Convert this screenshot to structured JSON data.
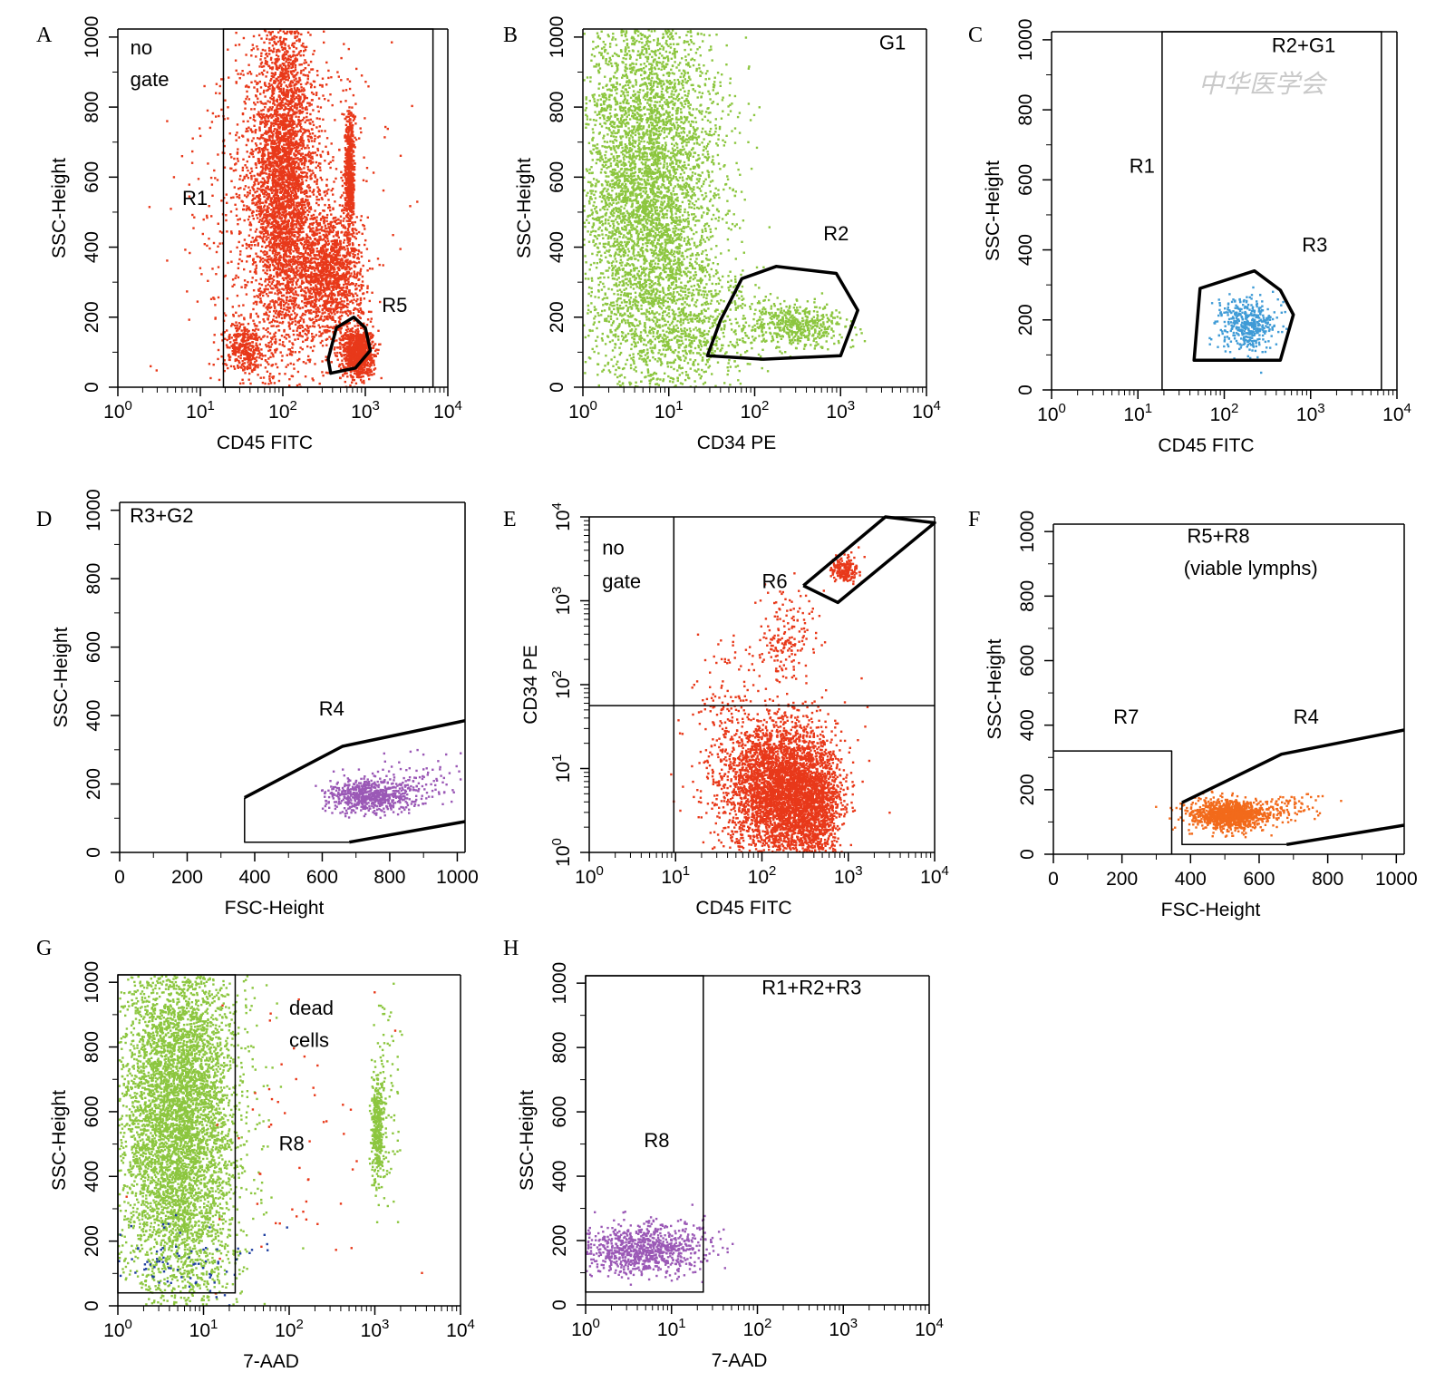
{
  "colors": {
    "red": "#e8391a",
    "green": "#8cc63f",
    "blue": "#3f9bd6",
    "purple": "#9b59b6",
    "orange": "#f26a1b",
    "navy": "#1f3fa0",
    "gate": "#000000"
  },
  "watermark": "中华医学会",
  "chart_data": [
    {
      "id": "A",
      "type": "scatter",
      "panel_letter": "A",
      "xlabel": "CD45 FITC",
      "ylabel": "SSC-Height",
      "x_scale": "log",
      "xlim": [
        0,
        4
      ],
      "ylim": [
        0,
        1023
      ],
      "x_ticks": [
        {
          "pre": "10",
          "exp": "0"
        },
        {
          "pre": "10",
          "exp": "1"
        },
        {
          "pre": "10",
          "exp": "2"
        },
        {
          "pre": "10",
          "exp": "3"
        },
        {
          "pre": "10",
          "exp": "4"
        }
      ],
      "y_ticks": [
        "0",
        "200",
        "400",
        "600",
        "800",
        "1000"
      ],
      "annotations": [
        {
          "text": "no",
          "x": 0.15,
          "y": 950
        },
        {
          "text": "gate",
          "x": 0.15,
          "y": 860
        },
        {
          "text": "R1",
          "x": 0.78,
          "y": 520
        },
        {
          "text": "R5",
          "x": 3.2,
          "y": 215
        }
      ],
      "gates": [
        {
          "name": "R1",
          "kind": "rect",
          "stroke": 1.5,
          "points": [
            [
              1.28,
              0
            ],
            [
              3.82,
              1023
            ]
          ]
        },
        {
          "name": "R5",
          "kind": "poly",
          "stroke": 3.5,
          "points": [
            [
              2.58,
              40
            ],
            [
              2.88,
              55
            ],
            [
              3.06,
              105
            ],
            [
              3.0,
              170
            ],
            [
              2.86,
              200
            ],
            [
              2.65,
              170
            ],
            [
              2.55,
              80
            ]
          ]
        }
      ],
      "clusters": [
        {
          "color": "red",
          "n": 3200,
          "cx": 2.0,
          "cy": 600,
          "sx": 0.18,
          "sy": 230
        },
        {
          "color": "red",
          "n": 1400,
          "cx": 2.55,
          "cy": 320,
          "sx": 0.2,
          "sy": 90
        },
        {
          "color": "red",
          "n": 1000,
          "cx": 2.9,
          "cy": 100,
          "sx": 0.09,
          "sy": 35
        },
        {
          "color": "red",
          "n": 600,
          "cx": 2.8,
          "cy": 610,
          "sx": 0.03,
          "sy": 95
        },
        {
          "color": "red",
          "n": 350,
          "cx": 1.52,
          "cy": 115,
          "sx": 0.12,
          "sy": 35
        },
        {
          "color": "red",
          "n": 1200,
          "cx": 2.0,
          "cy": 500,
          "sx": 0.5,
          "sy": 280
        }
      ]
    },
    {
      "id": "B",
      "type": "scatter",
      "panel_letter": "B",
      "xlabel": "CD34 PE",
      "ylabel": "SSC-Height",
      "x_scale": "log",
      "xlim": [
        0,
        4
      ],
      "ylim": [
        0,
        1023
      ],
      "x_ticks": [
        {
          "pre": "10",
          "exp": "0"
        },
        {
          "pre": "10",
          "exp": "1"
        },
        {
          "pre": "10",
          "exp": "2"
        },
        {
          "pre": "10",
          "exp": "3"
        },
        {
          "pre": "10",
          "exp": "4"
        }
      ],
      "y_ticks": [
        "0",
        "200",
        "400",
        "600",
        "800",
        "1000"
      ],
      "annotations": [
        {
          "text": "G1",
          "x": 3.45,
          "y": 965
        },
        {
          "text": "R2",
          "x": 2.8,
          "y": 420
        }
      ],
      "gates": [
        {
          "name": "R2",
          "kind": "poly",
          "stroke": 3.5,
          "points": [
            [
              1.45,
              90
            ],
            [
              1.6,
              190
            ],
            [
              1.85,
              310
            ],
            [
              2.25,
              345
            ],
            [
              2.95,
              325
            ],
            [
              3.2,
              220
            ],
            [
              3.0,
              90
            ],
            [
              2.1,
              80
            ]
          ]
        }
      ],
      "clusters": [
        {
          "color": "green",
          "n": 5500,
          "cx": 0.75,
          "cy": 560,
          "sx": 0.42,
          "sy": 320
        },
        {
          "color": "green",
          "n": 500,
          "cx": 2.5,
          "cy": 180,
          "sx": 0.28,
          "sy": 32
        },
        {
          "color": "green",
          "n": 500,
          "cx": 1.35,
          "cy": 170,
          "sx": 0.4,
          "sy": 80
        }
      ]
    },
    {
      "id": "C",
      "type": "scatter",
      "panel_letter": "C",
      "xlabel": "CD45 FITC",
      "ylabel": "SSC-Height",
      "x_scale": "log",
      "xlim": [
        0,
        4
      ],
      "ylim": [
        0,
        1023
      ],
      "x_ticks": [
        {
          "pre": "10",
          "exp": "0"
        },
        {
          "pre": "10",
          "exp": "1"
        },
        {
          "pre": "10",
          "exp": "2"
        },
        {
          "pre": "10",
          "exp": "3"
        },
        {
          "pre": "10",
          "exp": "4"
        }
      ],
      "y_ticks": [
        "0",
        "200",
        "400",
        "600",
        "800",
        "1000"
      ],
      "annotations": [
        {
          "text": "R2+G1",
          "x": 2.55,
          "y": 965
        },
        {
          "text": "R1",
          "x": 0.9,
          "y": 620
        },
        {
          "text": "R3",
          "x": 2.9,
          "y": 395
        }
      ],
      "gates": [
        {
          "name": "R1",
          "kind": "rect",
          "stroke": 1.5,
          "points": [
            [
              1.28,
              0
            ],
            [
              3.82,
              1023
            ]
          ]
        },
        {
          "name": "R3",
          "kind": "poly",
          "stroke": 3.5,
          "points": [
            [
              1.65,
              85
            ],
            [
              1.72,
              290
            ],
            [
              2.35,
              340
            ],
            [
              2.65,
              285
            ],
            [
              2.8,
              215
            ],
            [
              2.65,
              85
            ]
          ]
        }
      ],
      "clusters": [
        {
          "color": "blue",
          "n": 420,
          "cx": 2.25,
          "cy": 190,
          "sx": 0.16,
          "sy": 38
        }
      ]
    },
    {
      "id": "D",
      "type": "scatter",
      "panel_letter": "D",
      "xlabel": "FSC-Height",
      "ylabel": "SSC-Height",
      "x_scale": "linear",
      "xlim": [
        0,
        1023
      ],
      "ylim": [
        0,
        1023
      ],
      "x_ticks": [
        "0",
        "200",
        "400",
        "600",
        "800",
        "1000"
      ],
      "y_ticks": [
        "0",
        "200",
        "400",
        "600",
        "800",
        "1000"
      ],
      "annotations": [
        {
          "text": "R3+G2",
          "x": 30,
          "y": 965
        },
        {
          "text": "R4",
          "x": 590,
          "y": 400
        }
      ],
      "gates": [
        {
          "name": "R4-left",
          "kind": "line",
          "stroke": 1.5,
          "points": [
            [
              370,
              160
            ],
            [
              370,
              30
            ],
            [
              680,
              30
            ]
          ]
        },
        {
          "name": "R4-upper",
          "kind": "line",
          "stroke": 3.5,
          "points": [
            [
              370,
              160
            ],
            [
              660,
              310
            ],
            [
              1023,
              385
            ]
          ]
        },
        {
          "name": "R4-lower",
          "kind": "line",
          "stroke": 3.5,
          "points": [
            [
              680,
              30
            ],
            [
              1023,
              90
            ]
          ]
        }
      ],
      "clusters": [
        {
          "color": "purple",
          "n": 650,
          "cx": 740,
          "cy": 170,
          "sx": 65,
          "sy": 25
        },
        {
          "color": "purple",
          "n": 90,
          "cx": 900,
          "cy": 210,
          "sx": 80,
          "sy": 40
        }
      ]
    },
    {
      "id": "E",
      "type": "scatter",
      "panel_letter": "E",
      "xlabel": "CD45 FITC",
      "ylabel": "CD34 PE",
      "x_scale": "log",
      "y_scale": "log",
      "xlim": [
        0,
        4
      ],
      "ylim": [
        0,
        4
      ],
      "x_ticks": [
        {
          "pre": "10",
          "exp": "0"
        },
        {
          "pre": "10",
          "exp": "1"
        },
        {
          "pre": "10",
          "exp": "2"
        },
        {
          "pre": "10",
          "exp": "3"
        },
        {
          "pre": "10",
          "exp": "4"
        }
      ],
      "y_ticks": [
        {
          "pre": "10",
          "exp": "0"
        },
        {
          "pre": "10",
          "exp": "1"
        },
        {
          "pre": "10",
          "exp": "2"
        },
        {
          "pre": "10",
          "exp": "3"
        },
        {
          "pre": "10",
          "exp": "4"
        }
      ],
      "annotations": [
        {
          "text": "no",
          "x": 0.15,
          "y": 3.55
        },
        {
          "text": "gate",
          "x": 0.15,
          "y": 3.15
        },
        {
          "text": "R6",
          "x": 2.0,
          "y": 3.15
        }
      ],
      "gates": [
        {
          "name": "quad-v",
          "kind": "line",
          "stroke": 1.5,
          "points": [
            [
              0.98,
              0
            ],
            [
              0.98,
              4
            ]
          ]
        },
        {
          "name": "quad-h",
          "kind": "line",
          "stroke": 1.5,
          "points": [
            [
              0,
              1.75
            ],
            [
              4,
              1.75
            ]
          ]
        },
        {
          "name": "R6",
          "kind": "line",
          "stroke": 3.5,
          "points": [
            [
              2.48,
              3.18
            ],
            [
              3.43,
              4.0
            ],
            [
              4.0,
              3.93
            ],
            [
              2.88,
              2.98
            ],
            [
              2.48,
              3.18
            ]
          ]
        }
      ],
      "clusters": [
        {
          "color": "red",
          "n": 3600,
          "cx": 2.2,
          "cy": 0.75,
          "sx": 0.3,
          "sy": 0.42
        },
        {
          "color": "red",
          "n": 900,
          "cx": 2.6,
          "cy": 0.55,
          "sx": 0.15,
          "sy": 0.35
        },
        {
          "color": "red",
          "n": 250,
          "cx": 1.6,
          "cy": 1.3,
          "sx": 0.25,
          "sy": 0.6
        },
        {
          "color": "red",
          "n": 180,
          "cx": 2.25,
          "cy": 2.6,
          "sx": 0.2,
          "sy": 0.25
        },
        {
          "color": "red",
          "n": 180,
          "cx": 2.95,
          "cy": 3.38,
          "sx": 0.08,
          "sy": 0.08
        }
      ]
    },
    {
      "id": "F",
      "type": "scatter",
      "panel_letter": "F",
      "xlabel": "FSC-Height",
      "ylabel": "SSC-Height",
      "x_scale": "linear",
      "xlim": [
        0,
        1023
      ],
      "ylim": [
        0,
        1023
      ],
      "x_ticks": [
        "0",
        "200",
        "400",
        "600",
        "800",
        "1000"
      ],
      "y_ticks": [
        "0",
        "200",
        "400",
        "600",
        "800",
        "1000"
      ],
      "annotations": [
        {
          "text": "R5+R8",
          "x": 390,
          "y": 965
        },
        {
          "text": "(viable lymphs)",
          "x": 380,
          "y": 865
        },
        {
          "text": "R7",
          "x": 175,
          "y": 405
        },
        {
          "text": "R4",
          "x": 700,
          "y": 405
        }
      ],
      "gates": [
        {
          "name": "R7",
          "kind": "line",
          "stroke": 1.5,
          "points": [
            [
              0,
              320
            ],
            [
              345,
              320
            ],
            [
              345,
              0
            ]
          ]
        },
        {
          "name": "R4-left",
          "kind": "line",
          "stroke": 1.5,
          "points": [
            [
              375,
              160
            ],
            [
              375,
              30
            ],
            [
              680,
              30
            ]
          ]
        },
        {
          "name": "R4-upper",
          "kind": "line",
          "stroke": 3.5,
          "points": [
            [
              375,
              160
            ],
            [
              665,
              310
            ],
            [
              1023,
              385
            ]
          ]
        },
        {
          "name": "R4-lower",
          "kind": "line",
          "stroke": 3.5,
          "points": [
            [
              680,
              30
            ],
            [
              1023,
              90
            ]
          ]
        }
      ],
      "clusters": [
        {
          "color": "orange",
          "n": 1100,
          "cx": 510,
          "cy": 125,
          "sx": 55,
          "sy": 22
        },
        {
          "color": "orange",
          "n": 90,
          "cx": 680,
          "cy": 150,
          "sx": 60,
          "sy": 20
        }
      ]
    },
    {
      "id": "G",
      "type": "scatter",
      "panel_letter": "G",
      "xlabel": "7-AAD",
      "ylabel": "SSC-Height",
      "x_scale": "log",
      "xlim": [
        0,
        4
      ],
      "ylim": [
        0,
        1023
      ],
      "x_ticks": [
        {
          "pre": "10",
          "exp": "0"
        },
        {
          "pre": "10",
          "exp": "1"
        },
        {
          "pre": "10",
          "exp": "2"
        },
        {
          "pre": "10",
          "exp": "3"
        },
        {
          "pre": "10",
          "exp": "4"
        }
      ],
      "y_ticks": [
        "0",
        "200",
        "400",
        "600",
        "800",
        "1000"
      ],
      "annotations": [
        {
          "text": "dead",
          "x": 2.0,
          "y": 900
        },
        {
          "text": "cells",
          "x": 2.0,
          "y": 800
        },
        {
          "text": "R8",
          "x": 1.88,
          "y": 480
        }
      ],
      "gates": [
        {
          "name": "R8",
          "kind": "rect",
          "stroke": 1.5,
          "points": [
            [
              0,
              40
            ],
            [
              1.37,
              1023
            ]
          ]
        }
      ],
      "clusters": [
        {
          "color": "green",
          "n": 6000,
          "cx": 0.7,
          "cy": 580,
          "sx": 0.35,
          "sy": 310
        },
        {
          "color": "green",
          "n": 350,
          "cx": 3.02,
          "cy": 560,
          "sx": 0.04,
          "sy": 90
        },
        {
          "color": "green",
          "n": 80,
          "cx": 3.15,
          "cy": 700,
          "sx": 0.08,
          "sy": 200
        },
        {
          "color": "navy",
          "n": 80,
          "cx": 0.8,
          "cy": 120,
          "sx": 0.5,
          "sy": 60
        },
        {
          "color": "red",
          "n": 60,
          "cx": 2.0,
          "cy": 550,
          "sx": 0.6,
          "sy": 300
        }
      ]
    },
    {
      "id": "H",
      "type": "scatter",
      "panel_letter": "H",
      "xlabel": "7-AAD",
      "ylabel": "SSC-Height",
      "x_scale": "log",
      "xlim": [
        0,
        4
      ],
      "ylim": [
        0,
        1023
      ],
      "x_ticks": [
        {
          "pre": "10",
          "exp": "0"
        },
        {
          "pre": "10",
          "exp": "1"
        },
        {
          "pre": "10",
          "exp": "2"
        },
        {
          "pre": "10",
          "exp": "3"
        },
        {
          "pre": "10",
          "exp": "4"
        }
      ],
      "y_ticks": [
        "0",
        "200",
        "400",
        "600",
        "800",
        "1000"
      ],
      "annotations": [
        {
          "text": "R1+R2+R3",
          "x": 2.05,
          "y": 965
        },
        {
          "text": "R8",
          "x": 0.68,
          "y": 490
        }
      ],
      "gates": [
        {
          "name": "R8",
          "kind": "rect",
          "stroke": 1.5,
          "points": [
            [
              0,
              40
            ],
            [
              1.37,
              1023
            ]
          ]
        }
      ],
      "clusters": [
        {
          "color": "purple",
          "n": 900,
          "cx": 0.65,
          "cy": 175,
          "sx": 0.38,
          "sy": 40
        }
      ]
    }
  ]
}
